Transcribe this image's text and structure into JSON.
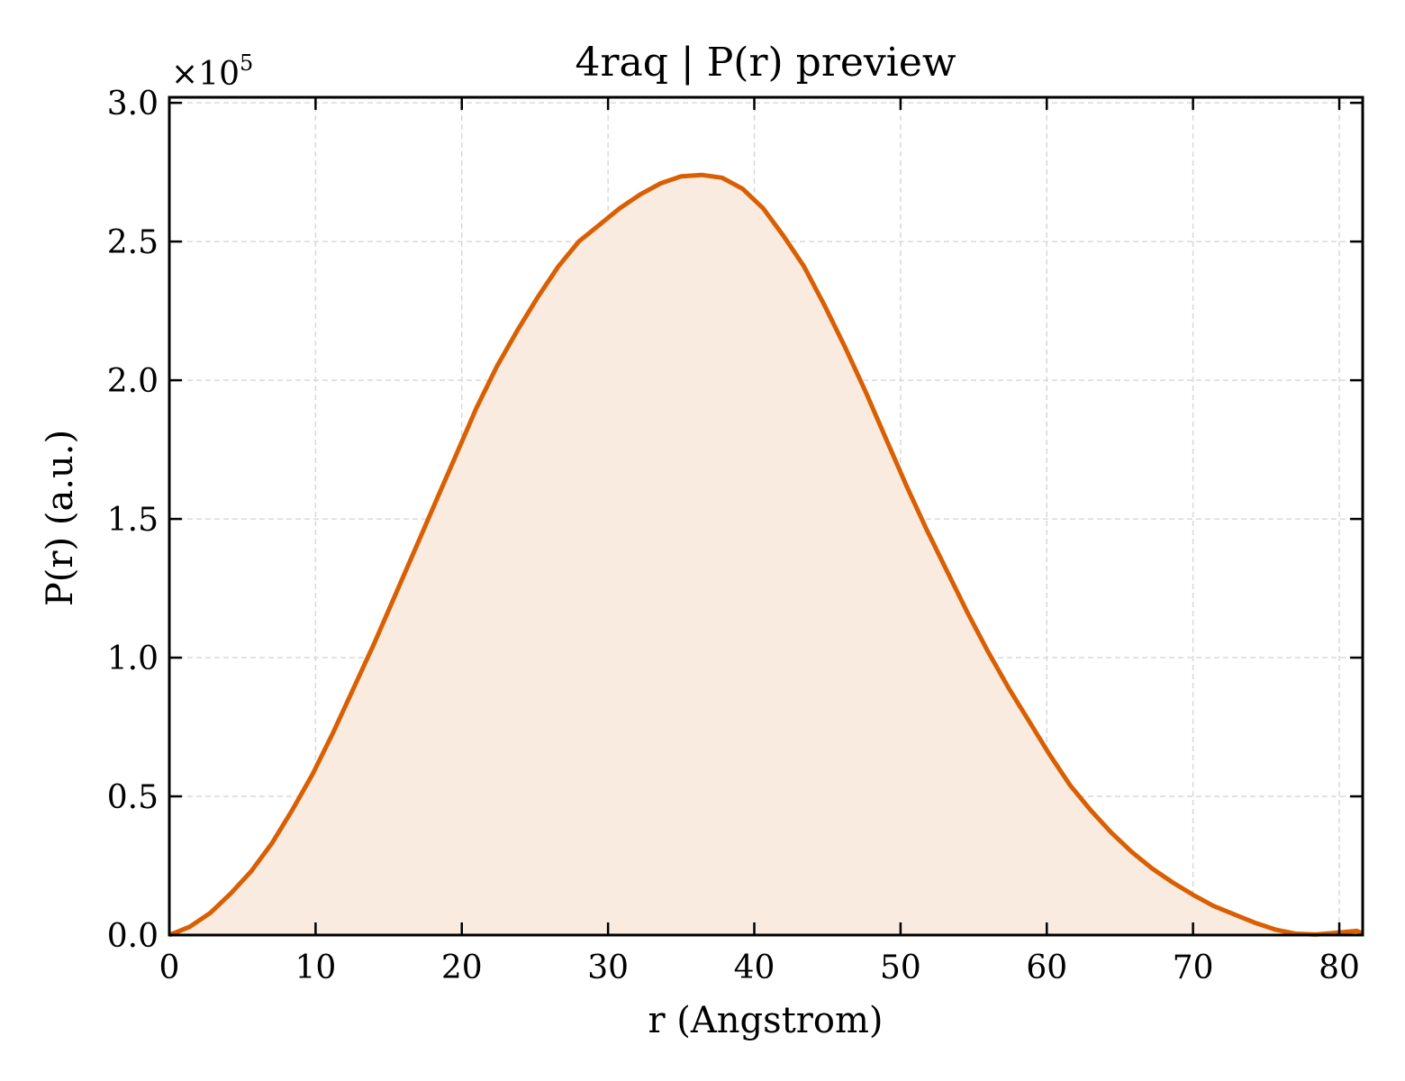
{
  "chart_data": {
    "type": "area",
    "title": "4raq | P(r) preview",
    "xlabel": "r (Angstrom)",
    "ylabel": "P(r) (a.u.)",
    "y_multiplier_base": "×10",
    "y_multiplier_exp": "5",
    "xlim": [
      0,
      81.6
    ],
    "ylim": [
      0,
      3.02
    ],
    "x_ticks": [
      0,
      10,
      20,
      30,
      40,
      50,
      60,
      70,
      80
    ],
    "x_tick_labels": [
      "0",
      "10",
      "20",
      "30",
      "40",
      "50",
      "60",
      "70",
      "80"
    ],
    "y_ticks": [
      0,
      0.5,
      1.0,
      1.5,
      2.0,
      2.5,
      3.0
    ],
    "y_tick_labels": [
      "0.0",
      "0.5",
      "1.0",
      "1.5",
      "2.0",
      "2.5",
      "3.0"
    ],
    "grid": true,
    "line_color": "#d95f02",
    "fill_color": "#f9ebe0",
    "x": [
      0,
      1.4,
      2.8,
      4.2,
      5.6,
      7.0,
      8.4,
      9.8,
      11.2,
      12.6,
      14.0,
      15.4,
      16.8,
      18.2,
      19.6,
      21.0,
      22.4,
      23.8,
      25.2,
      26.6,
      28.0,
      29.4,
      30.8,
      32.2,
      33.6,
      35.0,
      36.4,
      37.8,
      39.2,
      40.6,
      42.0,
      43.4,
      44.8,
      46.2,
      47.6,
      49.0,
      50.4,
      51.8,
      53.2,
      54.6,
      56.0,
      57.4,
      58.8,
      60.2,
      61.6,
      63.0,
      64.4,
      65.8,
      67.2,
      68.6,
      70.0,
      71.4,
      72.8,
      74.2,
      75.6,
      77.0,
      78.4,
      79.8,
      81.2,
      81.6
    ],
    "y": [
      0.0,
      0.03,
      0.08,
      0.15,
      0.23,
      0.33,
      0.45,
      0.58,
      0.73,
      0.89,
      1.05,
      1.22,
      1.39,
      1.56,
      1.73,
      1.9,
      2.05,
      2.18,
      2.3,
      2.41,
      2.5,
      2.56,
      2.62,
      2.67,
      2.71,
      2.735,
      2.74,
      2.73,
      2.69,
      2.62,
      2.52,
      2.41,
      2.27,
      2.12,
      1.96,
      1.79,
      1.62,
      1.46,
      1.31,
      1.16,
      1.02,
      0.89,
      0.77,
      0.65,
      0.54,
      0.45,
      0.37,
      0.3,
      0.24,
      0.19,
      0.145,
      0.105,
      0.075,
      0.045,
      0.02,
      0.005,
      0.002,
      0.008,
      0.015,
      0.005
    ]
  }
}
